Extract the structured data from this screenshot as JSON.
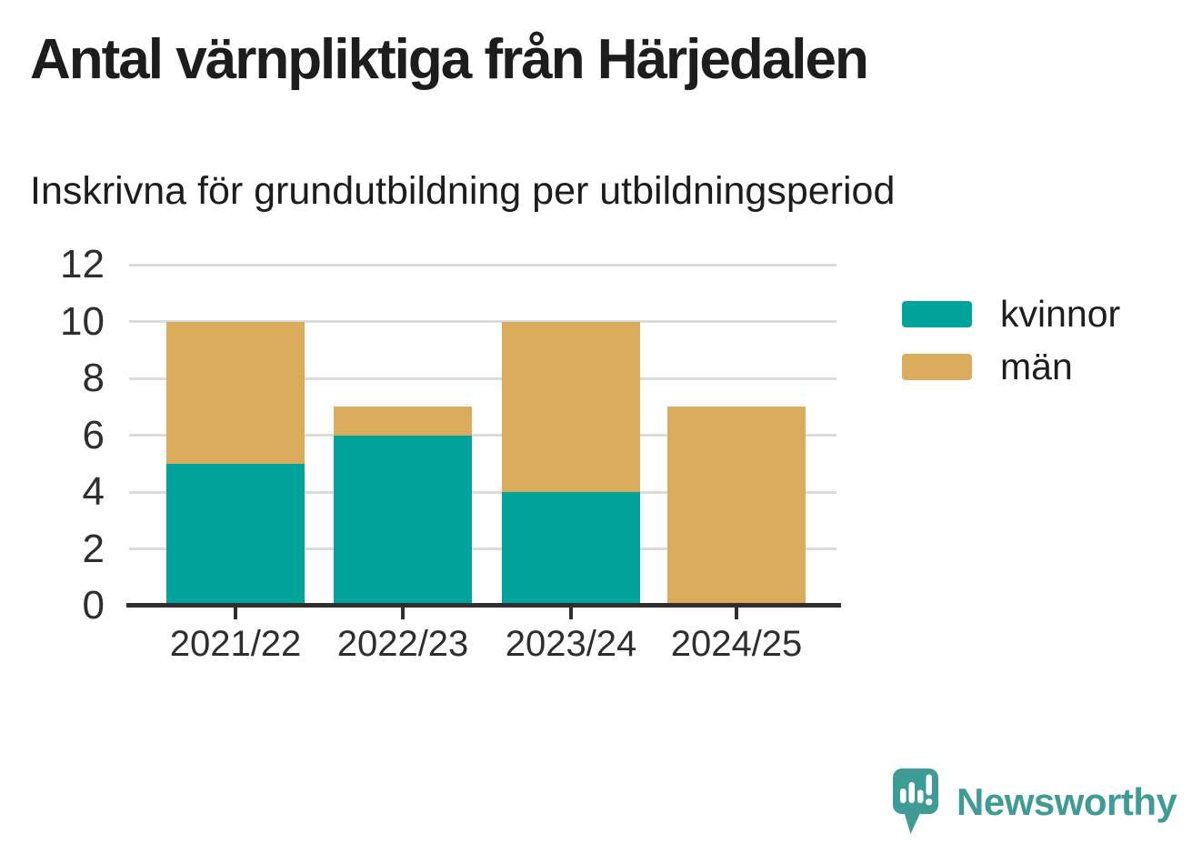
{
  "chart_data": {
    "type": "bar",
    "stacked": true,
    "title": "Antal värnpliktiga från Härjedalen",
    "subtitle": "Inskrivna för grundutbildning per utbildningsperiod",
    "categories": [
      "2021/22",
      "2022/23",
      "2023/24",
      "2024/25"
    ],
    "series": [
      {
        "name": "kvinnor",
        "color": "#00a49b",
        "values": [
          5,
          6,
          4,
          0
        ]
      },
      {
        "name": "män",
        "color": "#d9ab5b",
        "values": [
          5,
          1,
          6,
          7
        ]
      }
    ],
    "xlabel": "",
    "ylabel": "",
    "ylim": [
      0,
      12
    ],
    "yticks": [
      0,
      2,
      4,
      6,
      8,
      10,
      12
    ],
    "grid": "horizontal",
    "legend_position": "right"
  },
  "branding": {
    "name": "Newsworthy",
    "color": "#3f9b95",
    "icon": "newsworthy-speech-bubble-bar-chart-icon"
  },
  "style": {
    "background": "#ffffff",
    "text_color": "#1d1d1b",
    "axis_text_color": "#2e2e2e",
    "gridline_color": "#dcdcdc",
    "axis_line_color": "#2f2f2f"
  }
}
